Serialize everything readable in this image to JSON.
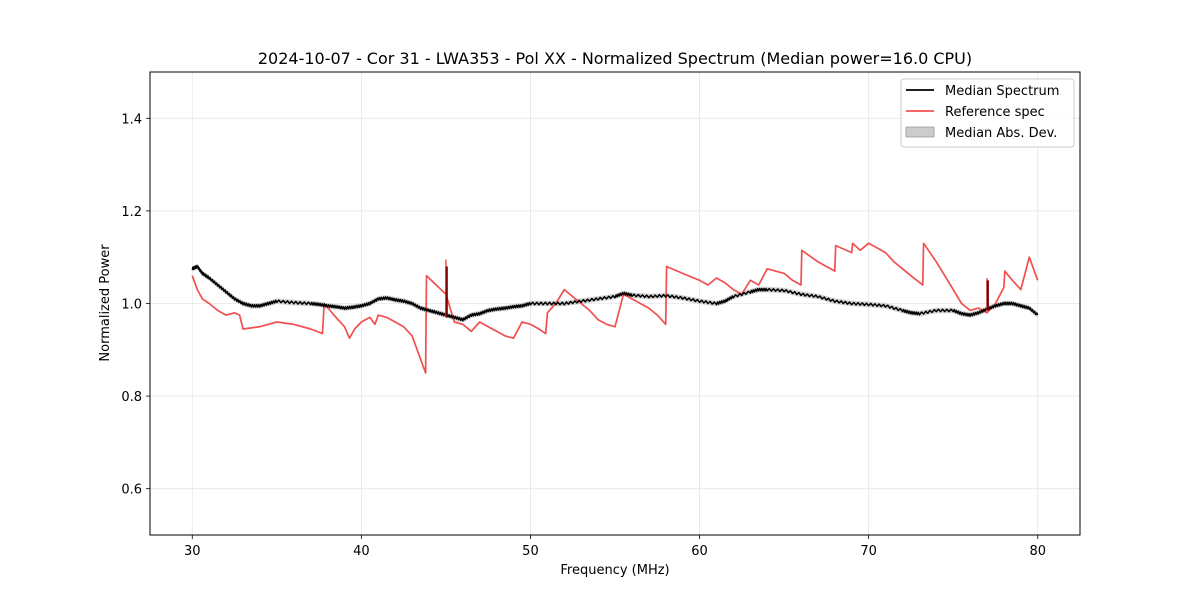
{
  "chart_data": {
    "type": "line",
    "title": "2024-10-07 - Cor 31 - LWA353 - Pol XX - Normalized Spectrum (Median power=16.0 CPU)",
    "xlabel": "Frequency (MHz)",
    "ylabel": "Normalized Power",
    "xlim": [
      27.5,
      82.5
    ],
    "ylim": [
      0.5,
      1.5
    ],
    "xticks": [
      30,
      40,
      50,
      60,
      70,
      80
    ],
    "yticks": [
      0.6,
      0.8,
      1.0,
      1.2,
      1.4
    ],
    "xtick_labels": [
      "30",
      "40",
      "50",
      "60",
      "70",
      "80"
    ],
    "ytick_labels": [
      "0.6",
      "0.8",
      "1.0",
      "1.2",
      "1.4"
    ],
    "grid": true,
    "legend_position": "top-right",
    "legend": [
      "Median Spectrum",
      "Reference spec",
      "Median Abs. Dev."
    ],
    "series": [
      {
        "name": "Median Spectrum",
        "color": "#000000",
        "x": [
          30.0,
          30.3,
          30.6,
          31.0,
          31.5,
          32.0,
          32.5,
          33.0,
          33.5,
          34.0,
          34.5,
          35.0,
          36.0,
          37.0,
          37.5,
          38.0,
          38.5,
          39.0,
          39.5,
          40.0,
          40.5,
          41.0,
          41.5,
          42.0,
          42.5,
          43.0,
          43.5,
          44.0,
          44.5,
          45.0,
          45.5,
          46.0,
          46.5,
          47.0,
          47.5,
          48.0,
          48.5,
          49.0,
          49.5,
          50.0,
          51.0,
          52.0,
          53.0,
          54.0,
          55.0,
          55.5,
          56.0,
          57.0,
          58.0,
          59.0,
          60.0,
          61.0,
          61.5,
          62.0,
          63.0,
          63.5,
          64.0,
          65.0,
          66.0,
          67.0,
          68.0,
          69.0,
          70.0,
          71.0,
          72.0,
          72.5,
          73.0,
          74.0,
          75.0,
          75.5,
          76.0,
          76.5,
          77.0,
          77.5,
          78.0,
          78.5,
          79.0,
          79.5,
          80.0
        ],
        "values": [
          1.075,
          1.08,
          1.065,
          1.055,
          1.04,
          1.025,
          1.01,
          1.0,
          0.995,
          0.995,
          1.0,
          1.005,
          1.002,
          1.0,
          0.998,
          0.995,
          0.993,
          0.99,
          0.992,
          0.995,
          1.0,
          1.01,
          1.012,
          1.008,
          1.005,
          1.0,
          0.99,
          0.985,
          0.98,
          0.975,
          0.97,
          0.965,
          0.975,
          0.978,
          0.985,
          0.988,
          0.99,
          0.993,
          0.995,
          1.0,
          1.0,
          1.0,
          1.005,
          1.01,
          1.015,
          1.022,
          1.018,
          1.015,
          1.017,
          1.012,
          1.005,
          1.0,
          1.005,
          1.015,
          1.025,
          1.03,
          1.03,
          1.028,
          1.02,
          1.015,
          1.005,
          1.0,
          0.998,
          0.995,
          0.985,
          0.98,
          0.978,
          0.985,
          0.985,
          0.978,
          0.975,
          0.98,
          0.988,
          0.995,
          1.0,
          1.0,
          0.995,
          0.99,
          0.975
        ]
      },
      {
        "name": "Reference spec",
        "color": "#f0504f",
        "x": [
          30.0,
          30.3,
          30.6,
          31.0,
          31.5,
          32.0,
          32.5,
          32.8,
          33.0,
          34.0,
          35.0,
          36.0,
          37.0,
          37.7,
          37.8,
          38.5,
          39.0,
          39.3,
          39.6,
          40.0,
          40.5,
          40.8,
          41.0,
          41.5,
          42.0,
          42.5,
          43.0,
          43.8,
          43.85,
          45.0,
          45.5,
          46.0,
          46.5,
          47.0,
          47.5,
          48.0,
          48.5,
          49.0,
          49.5,
          50.0,
          50.5,
          50.9,
          51.0,
          51.5,
          52.0,
          52.5,
          53.0,
          53.5,
          54.0,
          54.5,
          55.0,
          55.5,
          56.0,
          56.5,
          57.0,
          57.5,
          58.0,
          58.05,
          59.0,
          60.0,
          60.5,
          61.0,
          61.5,
          62.0,
          62.5,
          63.0,
          63.5,
          64.0,
          64.5,
          65.0,
          65.5,
          66.0,
          66.05,
          67.0,
          67.5,
          68.0,
          68.05,
          69.0,
          69.05,
          69.5,
          70.0,
          70.5,
          71.0,
          71.5,
          72.0,
          72.5,
          73.2,
          73.25,
          74.0,
          75.0,
          75.5,
          76.0,
          76.5,
          77.0,
          77.5,
          78.0,
          78.05,
          78.5,
          79.0,
          79.5,
          80.0
        ],
        "values": [
          1.06,
          1.03,
          1.01,
          1.0,
          0.985,
          0.975,
          0.98,
          0.975,
          0.945,
          0.95,
          0.96,
          0.955,
          0.945,
          0.935,
          1.0,
          0.97,
          0.95,
          0.925,
          0.945,
          0.96,
          0.97,
          0.955,
          0.975,
          0.97,
          0.96,
          0.95,
          0.93,
          0.85,
          1.06,
          1.02,
          0.96,
          0.955,
          0.94,
          0.96,
          0.95,
          0.94,
          0.93,
          0.925,
          0.96,
          0.955,
          0.945,
          0.935,
          0.98,
          1.0,
          1.03,
          1.015,
          1.0,
          0.985,
          0.965,
          0.955,
          0.95,
          1.02,
          1.01,
          1.0,
          0.99,
          0.975,
          0.955,
          1.08,
          1.065,
          1.05,
          1.04,
          1.055,
          1.045,
          1.03,
          1.02,
          1.05,
          1.04,
          1.075,
          1.07,
          1.065,
          1.05,
          1.04,
          1.115,
          1.09,
          1.08,
          1.07,
          1.125,
          1.11,
          1.13,
          1.115,
          1.13,
          1.12,
          1.11,
          1.09,
          1.075,
          1.06,
          1.04,
          1.13,
          1.09,
          1.03,
          1.0,
          0.985,
          0.99,
          0.98,
          1.0,
          1.035,
          1.07,
          1.05,
          1.03,
          1.1,
          1.05
        ]
      },
      {
        "name": "Median Abs. Dev.",
        "type": "band",
        "color": "#cccccc",
        "half_width": 0.006
      }
    ],
    "spikes": [
      {
        "x": 45.0,
        "reference_top": 1.095,
        "median_top": 1.08,
        "base": 0.97
      },
      {
        "x": 77.0,
        "reference_top": 1.055,
        "median_top": 1.05,
        "base": 0.985
      }
    ]
  }
}
